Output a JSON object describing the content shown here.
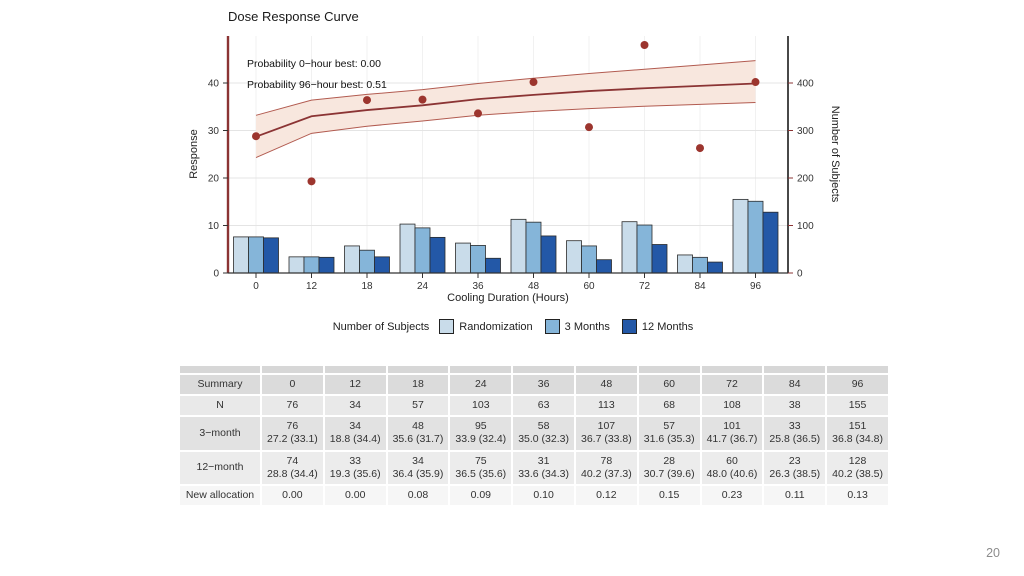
{
  "slide": {
    "page_number": "20"
  },
  "chart": {
    "title": "Dose Response Curve",
    "annotations": [
      "Probability 0−hour best: 0.00",
      "Probability 96−hour best: 0.51"
    ],
    "x_axis_label": "Cooling Duration (Hours)",
    "y_left_label": "Response",
    "y_right_label": "Number of Subjects",
    "legend_title": "Number of Subjects"
  },
  "chart_data": {
    "type": "bar+line+scatter",
    "x_categories": [
      0,
      12,
      18,
      24,
      36,
      48,
      60,
      72,
      84,
      96
    ],
    "left_axis": {
      "label": "Response",
      "range": [
        0,
        50
      ],
      "ticks": [
        0,
        10,
        20,
        30,
        40
      ]
    },
    "right_axis": {
      "label": "Number of Subjects",
      "range": [
        0,
        500
      ],
      "ticks": [
        0,
        100,
        200,
        300,
        400
      ]
    },
    "fitted_curve": {
      "color": "#8b3434",
      "band_edge_color": "#b25b50",
      "band_fill_color": "#f8e7de",
      "mean": [
        28.7,
        33.0,
        34.3,
        35.3,
        36.6,
        37.5,
        38.3,
        38.9,
        39.4,
        39.9
      ],
      "upper": [
        33.2,
        36.4,
        37.6,
        38.6,
        39.9,
        41.0,
        42.0,
        42.9,
        43.8,
        44.7
      ],
      "lower": [
        24.3,
        29.4,
        30.9,
        32.0,
        33.2,
        34.0,
        34.6,
        35.1,
        35.5,
        35.9
      ]
    },
    "observed_points": {
      "color": "#9c352e",
      "values": [
        28.8,
        19.3,
        36.4,
        36.5,
        33.6,
        40.2,
        30.7,
        48.0,
        26.3,
        40.2
      ]
    },
    "bar_series": [
      {
        "name": "Randomization",
        "color": "#c9dcea",
        "values": [
          76,
          34,
          57,
          103,
          63,
          113,
          68,
          108,
          38,
          155
        ]
      },
      {
        "name": "3 Months",
        "color": "#85b5d9",
        "values": [
          76,
          34,
          48,
          95,
          58,
          107,
          57,
          101,
          33,
          151
        ]
      },
      {
        "name": "12 Months",
        "color": "#2358a7",
        "values": [
          74,
          33,
          34,
          75,
          31,
          78,
          28,
          60,
          23,
          128
        ]
      }
    ]
  },
  "table": {
    "header_row": {
      "label": "Summary",
      "values": [
        "0",
        "12",
        "18",
        "24",
        "36",
        "48",
        "60",
        "72",
        "84",
        "96"
      ]
    },
    "rows": [
      {
        "label": "N",
        "values": [
          "76",
          "34",
          "57",
          "103",
          "63",
          "113",
          "68",
          "108",
          "38",
          "155"
        ]
      },
      {
        "label": "3−month",
        "values": [
          "76\n27.2 (33.1)",
          "34\n18.8 (34.4)",
          "48\n35.6 (31.7)",
          "95\n33.9 (32.4)",
          "58\n35.0 (32.3)",
          "107\n36.7 (33.8)",
          "57\n31.6 (35.3)",
          "101\n41.7 (36.7)",
          "33\n25.8 (36.5)",
          "151\n36.8 (34.8)"
        ]
      },
      {
        "label": "12−month",
        "values": [
          "74\n28.8 (34.4)",
          "33\n19.3 (35.6)",
          "34\n36.4 (35.9)",
          "75\n36.5 (35.6)",
          "31\n33.6 (34.3)",
          "78\n40.2 (37.3)",
          "28\n30.7 (39.6)",
          "60\n48.0 (40.6)",
          "23\n26.3 (38.5)",
          "128\n40.2 (38.5)"
        ]
      },
      {
        "label": "New allocation",
        "values": [
          "0.00",
          "0.00",
          "0.08",
          "0.09",
          "0.10",
          "0.12",
          "0.15",
          "0.23",
          "0.11",
          "0.13"
        ]
      }
    ]
  }
}
